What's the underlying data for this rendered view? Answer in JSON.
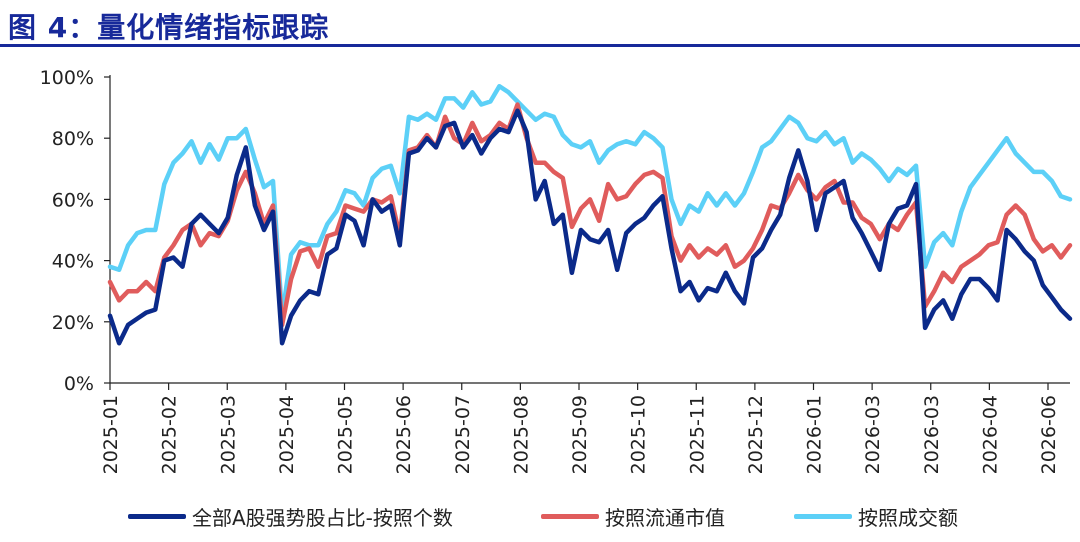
{
  "title": "图 4：量化情绪指标跟踪",
  "chart_data": {
    "type": "line",
    "ylim": [
      0,
      100
    ],
    "y_ticks": [
      "0%",
      "20%",
      "40%",
      "60%",
      "80%",
      "100%"
    ],
    "x_ticks": [
      "2025-01",
      "2025-02",
      "2025-03",
      "2025-04",
      "2025-05",
      "2025-06",
      "2025-07",
      "2025-08",
      "2025-09",
      "2025-10",
      "2025-11",
      "2025-12",
      "2026-01",
      "2026-03",
      "2026-03",
      "2026-04",
      "2026-06"
    ],
    "grid": false,
    "legend_position": "bottom",
    "series": [
      {
        "name": "全部A股强势股占比-按照个数",
        "color": "#0b2a8a",
        "values": [
          22,
          13,
          19,
          21,
          23,
          24,
          40,
          41,
          38,
          52,
          55,
          52,
          49,
          54,
          68,
          77,
          58,
          50,
          56,
          13,
          22,
          27,
          30,
          29,
          42,
          44,
          55,
          53,
          45,
          60,
          56,
          58,
          45,
          75,
          76,
          80,
          77,
          84,
          85,
          77,
          81,
          75,
          80,
          83,
          82,
          89,
          82,
          60,
          66,
          52,
          55,
          36,
          50,
          47,
          46,
          50,
          37,
          49,
          52,
          54,
          58,
          61,
          44,
          30,
          33,
          27,
          31,
          30,
          36,
          30,
          26,
          41,
          44,
          50,
          55,
          67,
          76,
          66,
          50,
          62,
          64,
          66,
          54,
          49,
          43,
          37,
          52,
          57,
          58,
          65,
          18,
          24,
          27,
          21,
          29,
          34,
          34,
          31,
          27,
          50,
          47,
          43,
          40,
          32,
          28,
          24,
          21
        ]
      },
      {
        "name": "按照流通市值",
        "color": "#e05c5c",
        "values": [
          33,
          27,
          30,
          30,
          33,
          30,
          41,
          45,
          50,
          52,
          45,
          49,
          48,
          53,
          63,
          69,
          62,
          52,
          58,
          19,
          34,
          43,
          44,
          38,
          48,
          49,
          58,
          57,
          56,
          60,
          59,
          61,
          48,
          76,
          77,
          81,
          77,
          87,
          80,
          78,
          85,
          79,
          81,
          85,
          83,
          91,
          80,
          72,
          72,
          69,
          67,
          51,
          57,
          60,
          53,
          65,
          60,
          61,
          65,
          68,
          69,
          67,
          48,
          40,
          45,
          41,
          44,
          42,
          45,
          38,
          40,
          44,
          50,
          58,
          57,
          62,
          68,
          63,
          60,
          64,
          66,
          59,
          59,
          54,
          52,
          47,
          52,
          50,
          55,
          59,
          25,
          30,
          36,
          33,
          38,
          40,
          42,
          45,
          46,
          55,
          58,
          55,
          47,
          43,
          45,
          41,
          45
        ]
      },
      {
        "name": "按照成交额",
        "color": "#5cd0f7",
        "values": [
          38,
          37,
          45,
          49,
          50,
          50,
          65,
          72,
          75,
          79,
          72,
          78,
          73,
          80,
          80,
          83,
          73,
          64,
          66,
          22,
          42,
          46,
          45,
          45,
          52,
          56,
          63,
          62,
          58,
          67,
          70,
          71,
          62,
          87,
          86,
          88,
          86,
          93,
          93,
          90,
          95,
          91,
          92,
          97,
          95,
          92,
          89,
          86,
          88,
          87,
          81,
          78,
          77,
          79,
          72,
          76,
          78,
          79,
          78,
          82,
          80,
          77,
          60,
          52,
          58,
          56,
          62,
          58,
          62,
          58,
          62,
          69,
          77,
          79,
          83,
          87,
          85,
          80,
          79,
          82,
          78,
          80,
          72,
          75,
          73,
          70,
          66,
          70,
          68,
          71,
          38,
          46,
          49,
          45,
          56,
          64,
          68,
          72,
          76,
          80,
          75,
          72,
          69,
          69,
          66,
          61,
          60
        ]
      }
    ]
  }
}
